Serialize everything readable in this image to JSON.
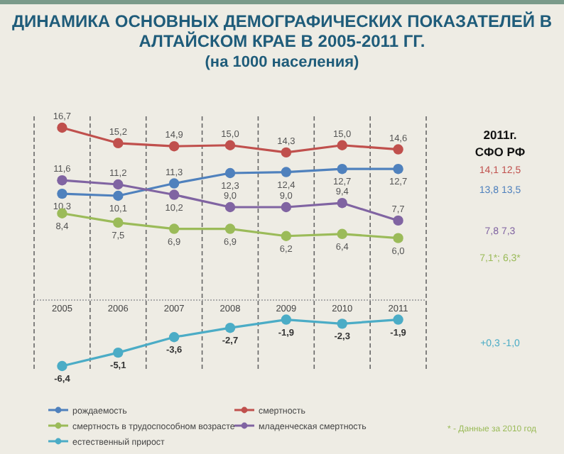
{
  "chart_data": {
    "type": "line",
    "title": "ДИНАМИКА ОСНОВНЫХ ДЕМОГРАФИЧЕСКИХ ПОКАЗАТЕЛЕЙ В АЛТАЙСКОМ КРАЕ В 2005-2011 ГГ.",
    "subtitle": "(на 1000 населения)",
    "categories": [
      "2005",
      "2006",
      "2007",
      "2008",
      "2009",
      "2010",
      "2011"
    ],
    "ref_lines": [
      {
        "axis": "y",
        "value": 0,
        "color": "#aaaaaa",
        "line_style": "dotted"
      }
    ],
    "tick_labels": "x",
    "grid": "x",
    "legend": "bottom",
    "marker": "circle",
    "line_style": "solid",
    "series": [
      {
        "name": "рождаемость",
        "color": "#4f81bd",
        "values": [
          10.3,
          10.1,
          11.3,
          12.3,
          12.4,
          12.7,
          12.7
        ],
        "value_labels": [
          "10,3",
          "10,1",
          "11,3",
          "12,3",
          "12,4",
          "12,7",
          "12,7"
        ]
      },
      {
        "name": "смертность",
        "color": "#c0504d",
        "values": [
          16.7,
          15.2,
          14.9,
          15.0,
          14.3,
          15.0,
          14.6
        ],
        "value_labels": [
          "16,7",
          "15,2",
          "14,9",
          "15,0",
          "14,3",
          "15,0",
          "14,6"
        ]
      },
      {
        "name": "смертность в трудоспособном  возрасте",
        "color": "#9bbb59",
        "values": [
          8.4,
          7.5,
          6.9,
          6.9,
          6.2,
          6.4,
          6.0
        ],
        "value_labels": [
          "8,4",
          "7,5",
          "6,9",
          "6,9",
          "6,2",
          "6,4",
          "6,0"
        ]
      },
      {
        "name": "младенческая смертность",
        "color": "#8064a2",
        "values": [
          11.6,
          11.2,
          10.2,
          9.0,
          9.0,
          9.4,
          7.7
        ],
        "value_labels": [
          "11,6",
          "11,2",
          "10,2",
          "9,0",
          "9,0",
          "9,4",
          "7,7"
        ]
      },
      {
        "name": "естественный прирост",
        "color": "#4bacc6",
        "values": [
          -6.4,
          -5.1,
          -3.6,
          -2.7,
          -1.9,
          -2.3,
          -1.9
        ],
        "value_labels": [
          "-6,4",
          "-5,1",
          "-3,6",
          "-2,7",
          "-1,9",
          "-2,3",
          "-1,9"
        ]
      }
    ],
    "annotations": [
      "2011г.",
      "СФО  РФ",
      "14,1  12,5",
      "13,8  13,5",
      "7,8  7,3",
      "7,1*; 6,3*",
      "+0,3  -1,0",
      "* - Данные за 2010 год"
    ]
  }
}
